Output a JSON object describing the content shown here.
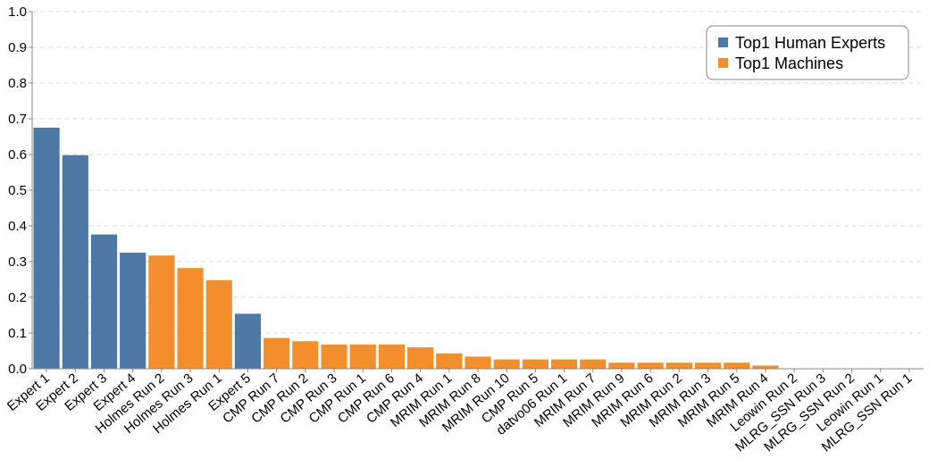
{
  "chart_data": {
    "type": "bar",
    "title": "",
    "xlabel": "",
    "ylabel": "",
    "ylim": [
      0,
      1.0
    ],
    "yticks": [
      "0.0",
      "0.1",
      "0.2",
      "0.3",
      "0.4",
      "0.5",
      "0.6",
      "0.7",
      "0.8",
      "0.9",
      "1.0"
    ],
    "grid": "horizontal dashed",
    "legend_position": "top-right",
    "categories": [
      "Expert 1",
      "Expert 2",
      "Expert 3",
      "Expert 4",
      "Holmes Run 2",
      "Holmes Run 3",
      "Holmes Run 1",
      "Expert 5",
      "CMP Run 7",
      "CMP Run 2",
      "CMP Run 3",
      "CMP Run 1",
      "CMP Run 6",
      "CMP Run 4",
      "MRIM Run 1",
      "MRIM Run 8",
      "MRIM Run 10",
      "CMP Run 5",
      "datvo06 Run 1",
      "MRIM Run 7",
      "MRIM Run 9",
      "MRIM Run 6",
      "MRIM Run 2",
      "MRIM Run 3",
      "MRIM Run 5",
      "MRIM Run 4",
      "Leowin Run 2",
      "MLRG_SSN Run 3",
      "MLRG_SSN Run 2",
      "Leowin Run 1",
      "MLRG_SSN Run 1"
    ],
    "values": [
      0.675,
      0.598,
      0.376,
      0.325,
      0.317,
      0.282,
      0.248,
      0.154,
      0.086,
      0.077,
      0.068,
      0.068,
      0.068,
      0.06,
      0.043,
      0.034,
      0.026,
      0.026,
      0.026,
      0.026,
      0.017,
      0.017,
      0.017,
      0.017,
      0.017,
      0.009,
      0.0,
      0.0,
      0.0,
      0.0,
      0.0
    ],
    "groups": [
      "human",
      "human",
      "human",
      "human",
      "machine",
      "machine",
      "machine",
      "human",
      "machine",
      "machine",
      "machine",
      "machine",
      "machine",
      "machine",
      "machine",
      "machine",
      "machine",
      "machine",
      "machine",
      "machine",
      "machine",
      "machine",
      "machine",
      "machine",
      "machine",
      "machine",
      "machine",
      "machine",
      "machine",
      "machine",
      "machine"
    ],
    "series": [
      {
        "key": "human",
        "name": "Top1 Human Experts",
        "color": "#4e79a7"
      },
      {
        "key": "machine",
        "name": "Top1 Machines",
        "color": "#f28e2b"
      }
    ]
  }
}
